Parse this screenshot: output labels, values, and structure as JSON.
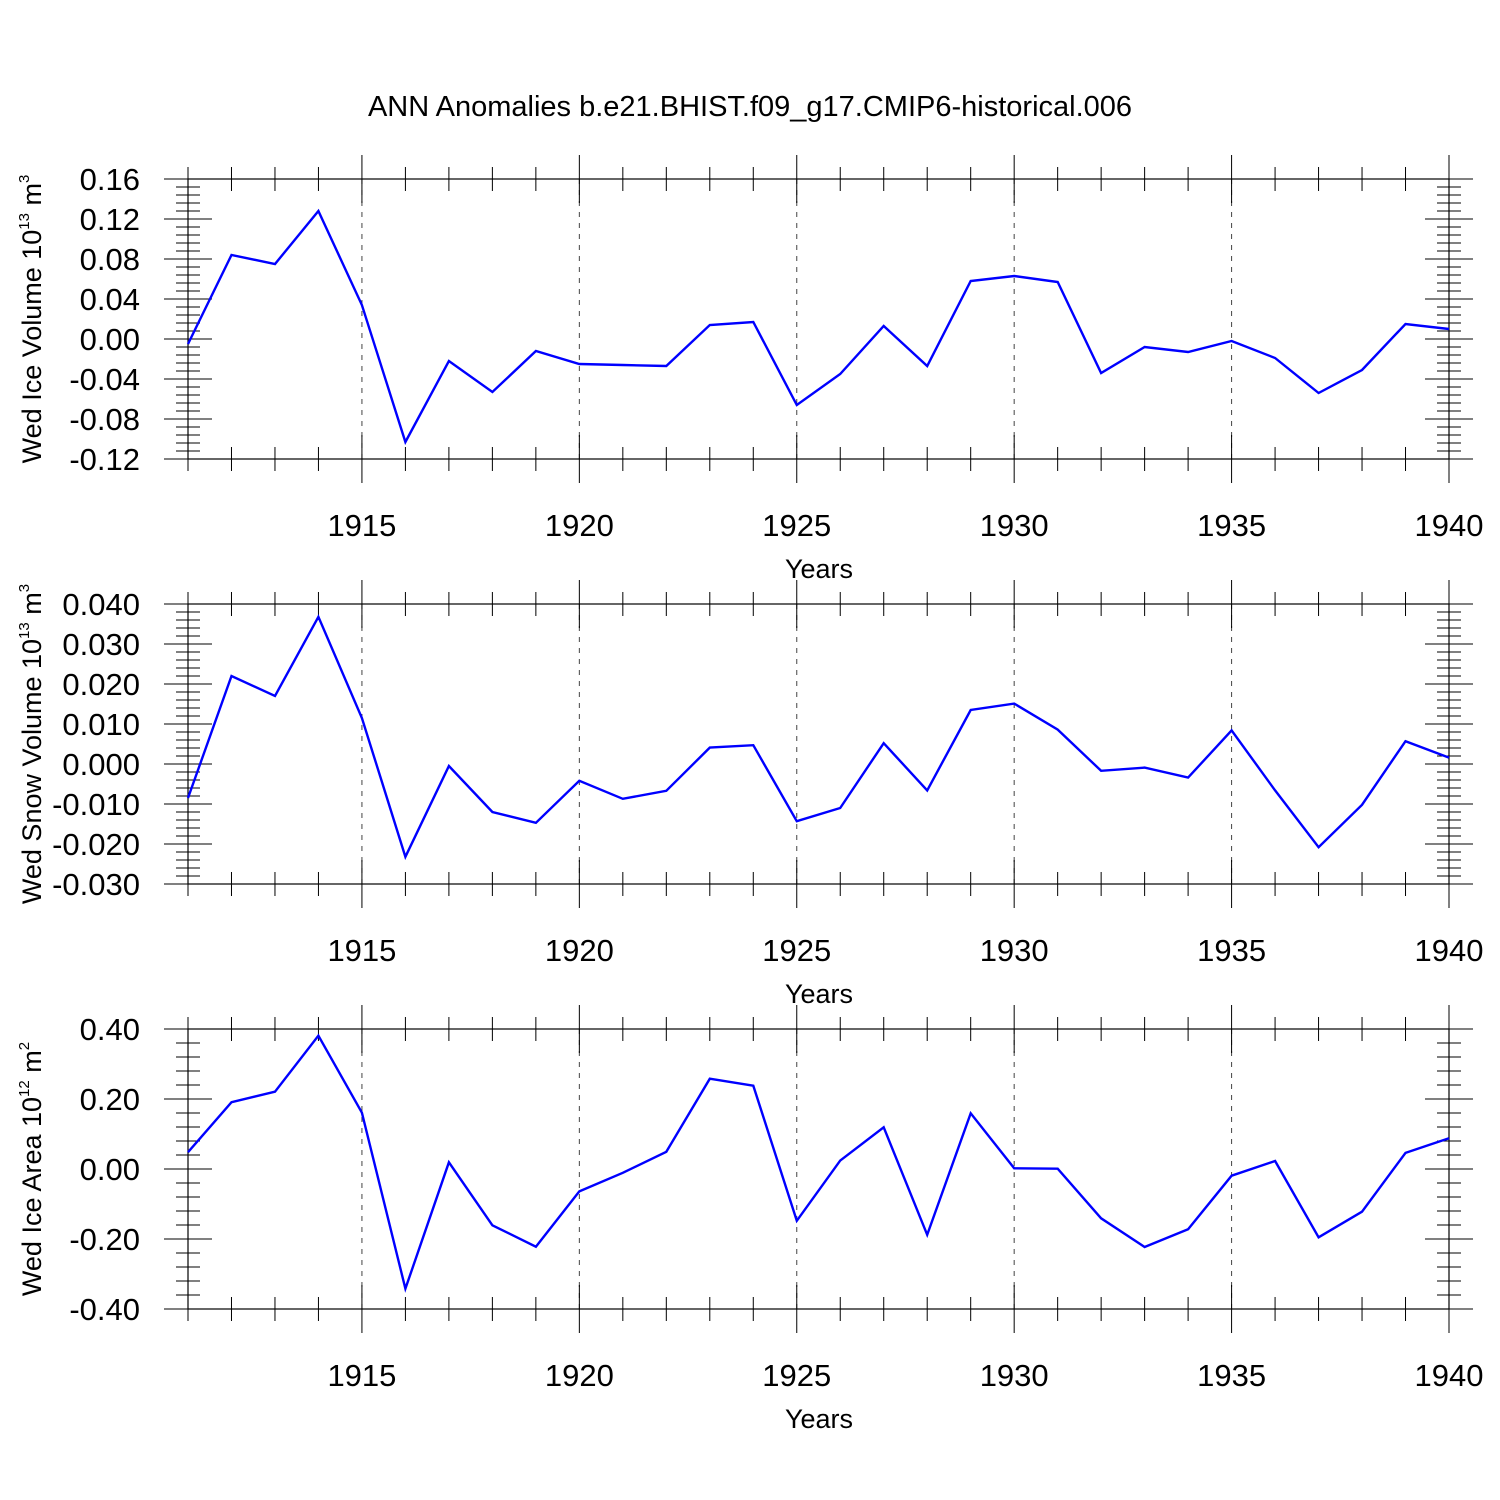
{
  "title": "ANN Anomalies b.e21.BHIST.f09_g17.CMIP6-historical.006",
  "chart_data": [
    {
      "type": "line",
      "ylabel": {
        "main": "Wed Ice Volume 10",
        "exp": "13",
        "unit": " m",
        "unit_exp": "3"
      },
      "xlabel": "Years",
      "xlim": [
        1911,
        1940
      ],
      "ylim": [
        -0.12,
        0.16
      ],
      "yticks": [
        0.16,
        0.12,
        0.08,
        0.04,
        0.0,
        -0.04,
        -0.08,
        -0.12
      ],
      "ytick_labels": [
        "0.16",
        "0.12",
        "0.08",
        "0.04",
        "0.00",
        "-0.04",
        "-0.08",
        "-0.12"
      ],
      "yminor_step": 0.008,
      "xticks": [
        1915,
        1920,
        1925,
        1930,
        1935,
        1940
      ],
      "xtick_labels": [
        "1915",
        "1920",
        "1925",
        "1930",
        "1935",
        "1940"
      ],
      "grid_years": [
        1915,
        1920,
        1925,
        1930,
        1935
      ],
      "color": "#0000ff",
      "x": [
        1911,
        1912,
        1913,
        1914,
        1915,
        1916,
        1917,
        1918,
        1919,
        1920,
        1921,
        1922,
        1923,
        1924,
        1925,
        1926,
        1927,
        1928,
        1929,
        1930,
        1931,
        1932,
        1933,
        1934,
        1935,
        1936,
        1937,
        1938,
        1939,
        1940
      ],
      "values": [
        -0.005,
        0.084,
        0.075,
        0.128,
        0.034,
        -0.103,
        -0.022,
        -0.053,
        -0.012,
        -0.025,
        -0.026,
        -0.027,
        0.014,
        0.017,
        -0.066,
        -0.035,
        0.013,
        -0.027,
        0.058,
        0.063,
        0.057,
        -0.034,
        -0.008,
        -0.013,
        -0.002,
        -0.019,
        -0.054,
        -0.031,
        0.015,
        0.01
      ]
    },
    {
      "type": "line",
      "ylabel": {
        "main": "Wed Snow Volume 10",
        "exp": "13",
        "unit": " m",
        "unit_exp": "3"
      },
      "xlabel": "Years",
      "xlim": [
        1911,
        1940
      ],
      "ylim": [
        -0.03,
        0.04
      ],
      "yticks": [
        0.04,
        0.03,
        0.02,
        0.01,
        0.0,
        -0.01,
        -0.02,
        -0.03
      ],
      "ytick_labels": [
        "0.040",
        "0.030",
        "0.020",
        "0.010",
        "0.000",
        "-0.010",
        "-0.020",
        "-0.030"
      ],
      "yminor_step": 0.002,
      "xticks": [
        1915,
        1920,
        1925,
        1930,
        1935,
        1940
      ],
      "xtick_labels": [
        "1915",
        "1920",
        "1925",
        "1930",
        "1935",
        "1940"
      ],
      "grid_years": [
        1915,
        1920,
        1925,
        1930,
        1935
      ],
      "color": "#0000ff",
      "x": [
        1911,
        1912,
        1913,
        1914,
        1915,
        1916,
        1917,
        1918,
        1919,
        1920,
        1921,
        1922,
        1923,
        1924,
        1925,
        1926,
        1927,
        1928,
        1929,
        1930,
        1931,
        1932,
        1933,
        1934,
        1935,
        1936,
        1937,
        1938,
        1939,
        1940
      ],
      "values": [
        -0.0085,
        0.022,
        0.017,
        0.0368,
        0.0115,
        -0.0232,
        -0.0005,
        -0.012,
        -0.0147,
        -0.0042,
        -0.0087,
        -0.0067,
        0.0041,
        0.0047,
        -0.0143,
        -0.011,
        0.0052,
        -0.0066,
        0.0135,
        0.0151,
        0.0086,
        -0.0017,
        -0.0009,
        -0.0034,
        0.0084,
        -0.0066,
        -0.0208,
        -0.0102,
        0.0057,
        0.0016
      ]
    },
    {
      "type": "line",
      "ylabel": {
        "main": "Wed Ice Area 10",
        "exp": "12",
        "unit": " m",
        "unit_exp": "2"
      },
      "xlabel": "Years",
      "xlim": [
        1911,
        1940
      ],
      "ylim": [
        -0.4,
        0.4
      ],
      "yticks": [
        0.4,
        0.2,
        0.0,
        -0.2,
        -0.4
      ],
      "ytick_labels": [
        "0.40",
        "0.20",
        "0.00",
        "-0.20",
        "-0.40"
      ],
      "yminor_step": 0.04,
      "xticks": [
        1915,
        1920,
        1925,
        1930,
        1935,
        1940
      ],
      "xtick_labels": [
        "1915",
        "1920",
        "1925",
        "1930",
        "1935",
        "1940"
      ],
      "grid_years": [
        1915,
        1920,
        1925,
        1930,
        1935
      ],
      "color": "#0000ff",
      "x": [
        1911,
        1912,
        1913,
        1914,
        1915,
        1916,
        1917,
        1918,
        1919,
        1920,
        1921,
        1922,
        1923,
        1924,
        1925,
        1926,
        1927,
        1928,
        1929,
        1930,
        1931,
        1932,
        1933,
        1934,
        1935,
        1936,
        1937,
        1938,
        1939,
        1940
      ],
      "values": [
        0.048,
        0.191,
        0.221,
        0.381,
        0.161,
        -0.342,
        0.019,
        -0.161,
        -0.222,
        -0.064,
        -0.011,
        0.049,
        0.258,
        0.238,
        -0.148,
        0.024,
        0.119,
        -0.188,
        0.159,
        0.002,
        0.001,
        -0.141,
        -0.223,
        -0.172,
        -0.019,
        0.023,
        -0.195,
        -0.122,
        0.046,
        0.088
      ]
    }
  ]
}
